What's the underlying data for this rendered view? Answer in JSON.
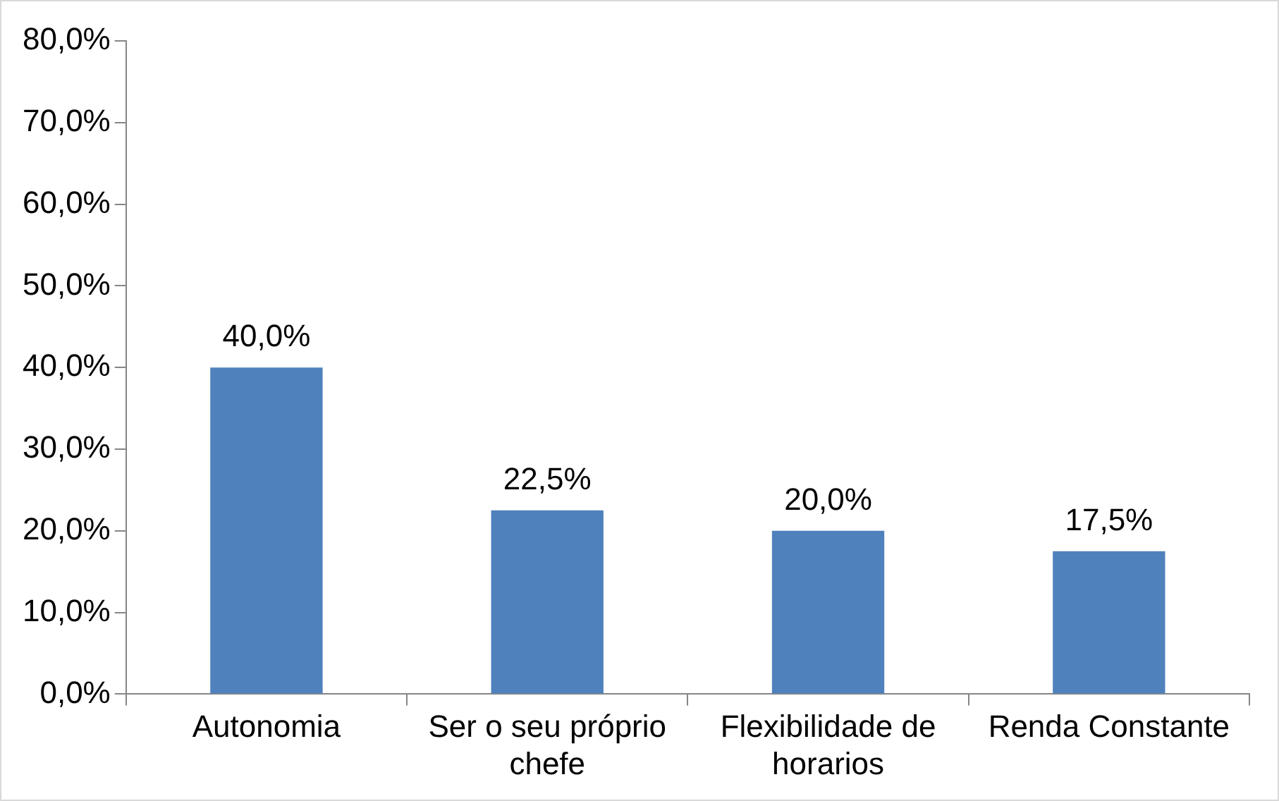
{
  "chart_data": {
    "type": "bar",
    "categories": [
      "Autonomia",
      "Ser o seu próprio chefe",
      "Flexibilidade de horarios",
      "Renda Constante"
    ],
    "values": [
      40.0,
      22.5,
      20.0,
      17.5
    ],
    "value_labels": [
      "40,0%",
      "22,5%",
      "20,0%",
      "17,5%"
    ],
    "color": "#4f81bd",
    "ylim": [
      0,
      80
    ],
    "yticks": [
      {
        "value": 0,
        "label": "0,0%"
      },
      {
        "value": 10,
        "label": "10,0%"
      },
      {
        "value": 20,
        "label": "20,0%"
      },
      {
        "value": 30,
        "label": "30,0%"
      },
      {
        "value": 40,
        "label": "40,0%"
      },
      {
        "value": 50,
        "label": "50,0%"
      },
      {
        "value": 60,
        "label": "60,0%"
      },
      {
        "value": 70,
        "label": "70,0%"
      },
      {
        "value": 80,
        "label": "80,0%"
      }
    ],
    "grid": false,
    "legend": false
  }
}
